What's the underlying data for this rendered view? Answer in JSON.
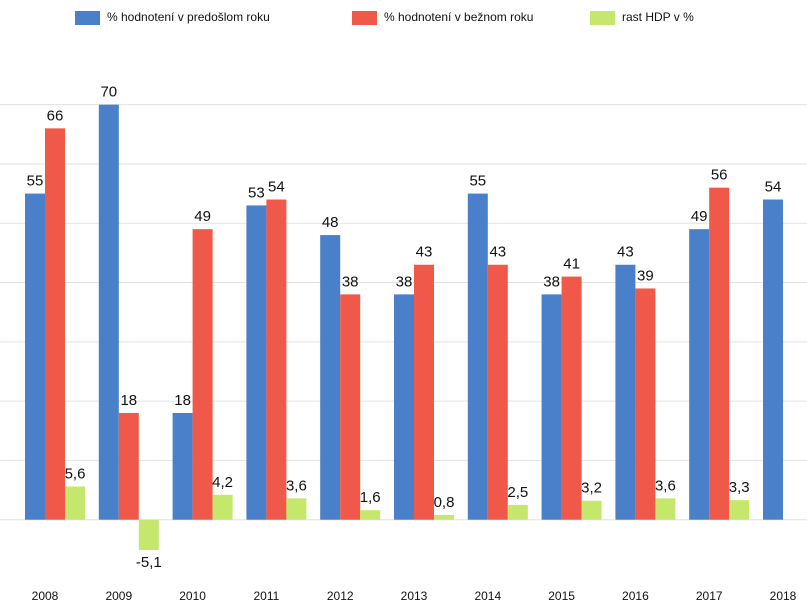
{
  "chart_data": {
    "type": "bar",
    "categories": [
      "2008",
      "2009",
      "2010",
      "2011",
      "2012",
      "2013",
      "2014",
      "2015",
      "2016",
      "2017",
      "2018"
    ],
    "series": [
      {
        "name": "% hodnotení v predošlom roku",
        "color": "#4a7fc9",
        "values": [
          55,
          70,
          18,
          53,
          48,
          38,
          55,
          38,
          43,
          49,
          54
        ]
      },
      {
        "name": "% hodnotení v bežnom roku",
        "color": "#f0584a",
        "values": [
          66,
          18,
          49,
          54,
          38,
          43,
          43,
          41,
          39,
          56,
          null
        ]
      },
      {
        "name": "rast HDP v %",
        "color": "#c5e86c",
        "values": [
          5.6,
          -5.1,
          4.2,
          3.6,
          1.6,
          0.8,
          2.5,
          3.2,
          3.6,
          3.3,
          null
        ],
        "value_labels": [
          "5,6",
          "-5,1",
          "4,2",
          "3,6",
          "1,6",
          "0,8",
          "2,5",
          "3,2",
          "3,6",
          "3,3",
          null
        ]
      }
    ],
    "ylim": [
      -10,
      75
    ],
    "yticks": [
      0,
      10,
      20,
      30,
      40,
      50,
      60,
      70
    ],
    "grid": true,
    "legend": "top"
  }
}
